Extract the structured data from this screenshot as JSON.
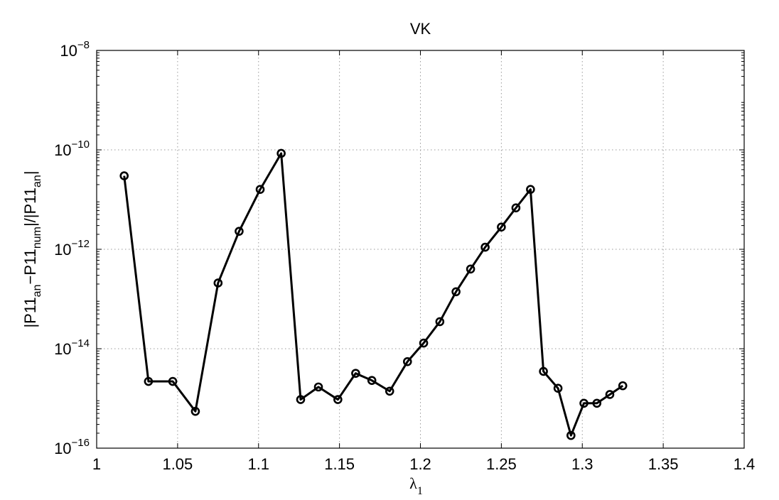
{
  "chart_data": {
    "type": "line",
    "title": "VK",
    "xlabel": "λ",
    "xlabel_sub": "1",
    "ylabel_parts": [
      "|P11",
      "an",
      "−P11",
      "num",
      "|/|P11",
      "an",
      "|"
    ],
    "x_scale": "linear",
    "y_scale": "log",
    "xlim": [
      1,
      1.4
    ],
    "ylim": [
      1e-16,
      1e-08
    ],
    "x_ticks": [
      1,
      1.05,
      1.1,
      1.15,
      1.2,
      1.25,
      1.3,
      1.35,
      1.4
    ],
    "x_tick_labels": [
      "1",
      "1.05",
      "1.1",
      "1.15",
      "1.2",
      "1.25",
      "1.3",
      "1.35",
      "1.4"
    ],
    "y_ticks": [
      1e-16,
      1e-14,
      1e-12,
      1e-10,
      1e-08
    ],
    "y_tick_labels": [
      {
        "base": "10",
        "exp": "−16"
      },
      {
        "base": "10",
        "exp": "−14"
      },
      {
        "base": "10",
        "exp": "−12"
      },
      {
        "base": "10",
        "exp": "−10"
      },
      {
        "base": "10",
        "exp": "−8"
      }
    ],
    "grid": true,
    "series": [
      {
        "color": "#000000",
        "marker": "circle",
        "points": [
          {
            "x": 1.017,
            "y": 3e-11
          },
          {
            "x": 1.032,
            "y": 2.2e-15
          },
          {
            "x": 1.047,
            "y": 2.2e-15
          },
          {
            "x": 1.061,
            "y": 5.5e-16
          },
          {
            "x": 1.075,
            "y": 2.1e-13
          },
          {
            "x": 1.088,
            "y": 2.3e-12
          },
          {
            "x": 1.101,
            "y": 1.6e-11
          },
          {
            "x": 1.114,
            "y": 8.5e-11
          },
          {
            "x": 1.126,
            "y": 9.5e-16
          },
          {
            "x": 1.137,
            "y": 1.7e-15
          },
          {
            "x": 1.149,
            "y": 9.5e-16
          },
          {
            "x": 1.16,
            "y": 3.2e-15
          },
          {
            "x": 1.17,
            "y": 2.3e-15
          },
          {
            "x": 1.181,
            "y": 1.4e-15
          },
          {
            "x": 1.192,
            "y": 5.5e-15
          },
          {
            "x": 1.202,
            "y": 1.3e-14
          },
          {
            "x": 1.212,
            "y": 3.5e-14
          },
          {
            "x": 1.222,
            "y": 1.4e-13
          },
          {
            "x": 1.231,
            "y": 4e-13
          },
          {
            "x": 1.24,
            "y": 1.1e-12
          },
          {
            "x": 1.25,
            "y": 2.8e-12
          },
          {
            "x": 1.259,
            "y": 6.8e-12
          },
          {
            "x": 1.268,
            "y": 1.6e-11
          },
          {
            "x": 1.276,
            "y": 3.5e-15
          },
          {
            "x": 1.285,
            "y": 1.6e-15
          },
          {
            "x": 1.293,
            "y": 1.8e-16
          },
          {
            "x": 1.301,
            "y": 8e-16
          },
          {
            "x": 1.309,
            "y": 8e-16
          },
          {
            "x": 1.317,
            "y": 1.2e-15
          },
          {
            "x": 1.325,
            "y": 1.8e-15
          }
        ]
      }
    ]
  }
}
